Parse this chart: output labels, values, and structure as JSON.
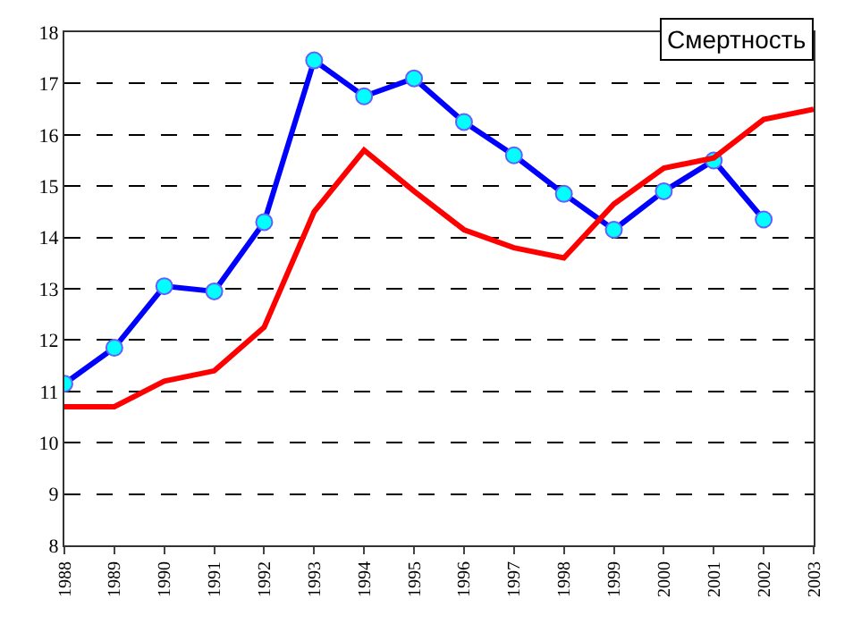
{
  "chart_data": {
    "type": "line",
    "title": "Смертность",
    "x": [
      1988,
      1989,
      1990,
      1991,
      1992,
      1993,
      1994,
      1995,
      1996,
      1997,
      1998,
      1999,
      2000,
      2001,
      2002,
      2003
    ],
    "series": [
      {
        "color": "#0000ff",
        "marker": "circle",
        "values": [
          11.15,
          11.85,
          13.05,
          12.95,
          14.3,
          17.45,
          16.75,
          17.1,
          16.25,
          15.6,
          14.85,
          14.15,
          14.9,
          15.5,
          14.35,
          null
        ]
      },
      {
        "color": "#ff0000",
        "marker": "none",
        "values": [
          10.7,
          10.7,
          11.2,
          11.4,
          12.25,
          14.5,
          15.7,
          14.9,
          14.15,
          13.8,
          13.6,
          14.65,
          15.35,
          15.55,
          16.3,
          16.5
        ]
      }
    ],
    "xlim": [
      1988,
      2003
    ],
    "xticks": [
      1988,
      1989,
      1990,
      1991,
      1992,
      1993,
      1994,
      1995,
      1996,
      1997,
      1998,
      1999,
      2000,
      2001,
      2002,
      2003
    ],
    "ylim": [
      8,
      18
    ],
    "yticks": [
      8,
      9,
      10,
      11,
      12,
      13,
      14,
      15,
      16,
      17,
      18
    ],
    "grid": "y",
    "line_style": "solid"
  }
}
